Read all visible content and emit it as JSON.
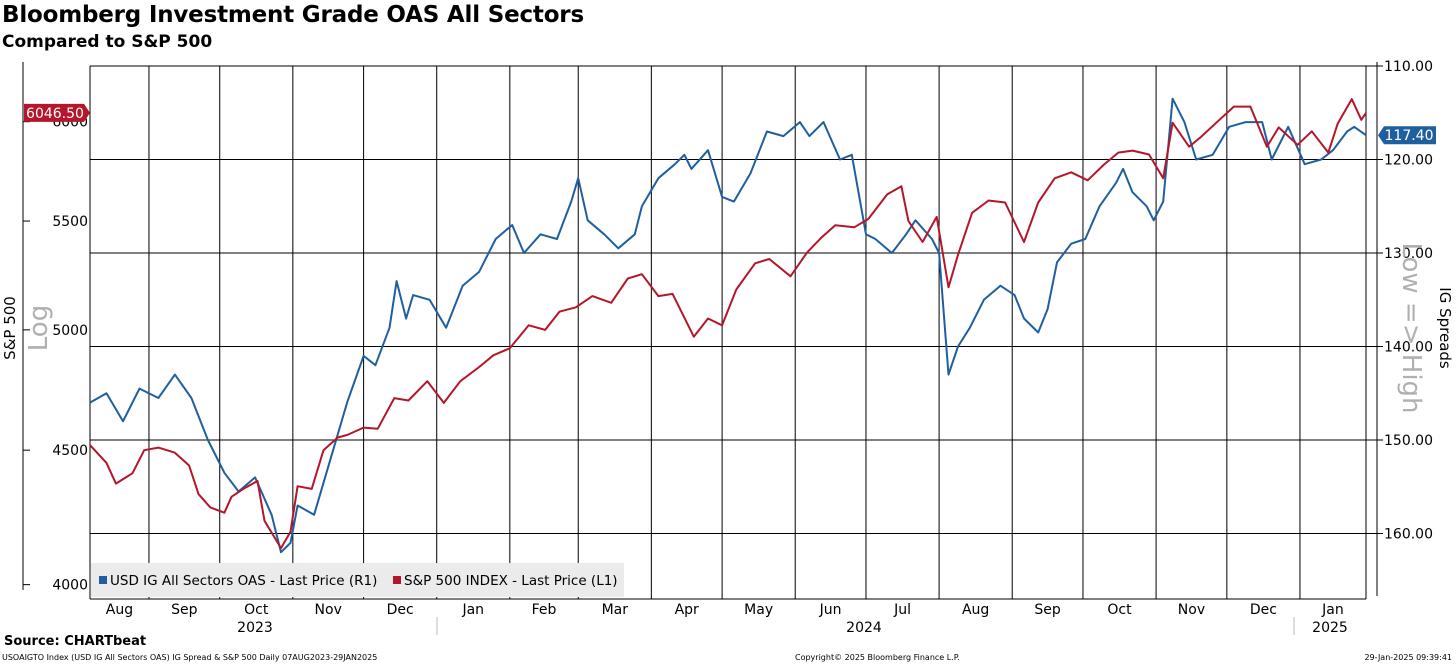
{
  "title": "Bloomberg Investment Grade OAS All Sectors",
  "subtitle": "Compared to S&P 500",
  "source": "Source: CHARTbeat",
  "footer": {
    "left": "USOAIGTO Index (USD IG All Sectors OAS) IG Spread & S&P 500  Daily 07AUG2023-29JAN2025",
    "center": "Copyright© 2025 Bloomberg Finance L.P.",
    "right": "29-Jan-2025 09:39:41"
  },
  "colors": {
    "spread": "#1f5fa0",
    "spx": "#b5162b",
    "grid": "#000000"
  },
  "chart_data": {
    "type": "line",
    "x_months": [
      "Aug",
      "Sep",
      "Oct",
      "Nov",
      "Dec",
      "Jan",
      "Feb",
      "Mar",
      "Apr",
      "May",
      "Jun",
      "Jul",
      "Aug",
      "Sep",
      "Oct",
      "Nov",
      "Dec",
      "Jan"
    ],
    "x_years": [
      "2023",
      "2024",
      "2025"
    ],
    "x_range": [
      "2023-08-07",
      "2025-01-29"
    ],
    "left_axis": {
      "label": "S&P 500",
      "note": "Log",
      "scale": "log",
      "ticks": [
        "4000",
        "4500",
        "5000",
        "5500",
        "6000"
      ],
      "range": [
        3950,
        6300
      ]
    },
    "right_axis": {
      "label": "IG Spreads",
      "note": "Low => High",
      "inverted": true,
      "ticks": [
        "110.00",
        "120.00",
        "130.00",
        "140.00",
        "150.00",
        "160.00"
      ],
      "range": [
        110,
        167
      ]
    },
    "last_values": {
      "spx": "6046.50",
      "spread": "117.40"
    },
    "legend": [
      "USD IG All Sectors OAS - Last Price (R1)",
      "S&P 500 INDEX - Last Price (L1)"
    ],
    "legend_position": "bottom-left",
    "grid": true,
    "series": [
      {
        "name": "USD IG All Sectors OAS - Last Price (R1)",
        "axis": "right",
        "points": [
          [
            "2023-08-07",
            146
          ],
          [
            "2023-08-14",
            145
          ],
          [
            "2023-08-21",
            148
          ],
          [
            "2023-08-28",
            144.5
          ],
          [
            "2023-09-05",
            145.5
          ],
          [
            "2023-09-12",
            143
          ],
          [
            "2023-09-19",
            145.5
          ],
          [
            "2023-09-26",
            150
          ],
          [
            "2023-10-03",
            153.5
          ],
          [
            "2023-10-09",
            155.5
          ],
          [
            "2023-10-16",
            154
          ],
          [
            "2023-10-23",
            158
          ],
          [
            "2023-10-27",
            162
          ],
          [
            "2023-10-31",
            161
          ],
          [
            "2023-11-03",
            157
          ],
          [
            "2023-11-10",
            158
          ],
          [
            "2023-11-17",
            152
          ],
          [
            "2023-11-24",
            146
          ],
          [
            "2023-12-01",
            141
          ],
          [
            "2023-12-06",
            142
          ],
          [
            "2023-12-12",
            138
          ],
          [
            "2023-12-15",
            133
          ],
          [
            "2023-12-19",
            137
          ],
          [
            "2023-12-22",
            134.5
          ],
          [
            "2023-12-29",
            135
          ],
          [
            "2024-01-05",
            138
          ],
          [
            "2024-01-12",
            133.5
          ],
          [
            "2024-01-19",
            132
          ],
          [
            "2024-01-26",
            128.5
          ],
          [
            "2024-02-02",
            127
          ],
          [
            "2024-02-07",
            130
          ],
          [
            "2024-02-14",
            128
          ],
          [
            "2024-02-21",
            128.5
          ],
          [
            "2024-02-27",
            124.5
          ],
          [
            "2024-03-01",
            122
          ],
          [
            "2024-03-05",
            126.5
          ],
          [
            "2024-03-12",
            128
          ],
          [
            "2024-03-18",
            129.5
          ],
          [
            "2024-03-25",
            128
          ],
          [
            "2024-03-28",
            125
          ],
          [
            "2024-04-04",
            122
          ],
          [
            "2024-04-11",
            120.5
          ],
          [
            "2024-04-15",
            119.5
          ],
          [
            "2024-04-18",
            121
          ],
          [
            "2024-04-25",
            119
          ],
          [
            "2024-05-01",
            124
          ],
          [
            "2024-05-06",
            124.5
          ],
          [
            "2024-05-13",
            121.5
          ],
          [
            "2024-05-20",
            117
          ],
          [
            "2024-05-27",
            117.5
          ],
          [
            "2024-06-03",
            116
          ],
          [
            "2024-06-07",
            117.5
          ],
          [
            "2024-06-13",
            116
          ],
          [
            "2024-06-20",
            120
          ],
          [
            "2024-06-25",
            119.5
          ],
          [
            "2024-07-01",
            128
          ],
          [
            "2024-07-05",
            128.5
          ],
          [
            "2024-07-12",
            130
          ],
          [
            "2024-07-18",
            128
          ],
          [
            "2024-07-22",
            126.5
          ],
          [
            "2024-07-29",
            128.5
          ],
          [
            "2024-08-01",
            130
          ],
          [
            "2024-08-05",
            143
          ],
          [
            "2024-08-09",
            140
          ],
          [
            "2024-08-14",
            138
          ],
          [
            "2024-08-20",
            135
          ],
          [
            "2024-08-27",
            133.5
          ],
          [
            "2024-09-02",
            134.5
          ],
          [
            "2024-09-06",
            137
          ],
          [
            "2024-09-12",
            138.5
          ],
          [
            "2024-09-16",
            136
          ],
          [
            "2024-09-20",
            131
          ],
          [
            "2024-09-26",
            129
          ],
          [
            "2024-10-02",
            128.5
          ],
          [
            "2024-10-08",
            125
          ],
          [
            "2024-10-15",
            122.5
          ],
          [
            "2024-10-18",
            121
          ],
          [
            "2024-10-22",
            123.5
          ],
          [
            "2024-10-28",
            125
          ],
          [
            "2024-10-31",
            126.5
          ],
          [
            "2024-11-04",
            124.5
          ],
          [
            "2024-11-08",
            113.5
          ],
          [
            "2024-11-13",
            116
          ],
          [
            "2024-11-18",
            120
          ],
          [
            "2024-11-25",
            119.5
          ],
          [
            "2024-12-02",
            116.5
          ],
          [
            "2024-12-09",
            116
          ],
          [
            "2024-12-16",
            116
          ],
          [
            "2024-12-20",
            120
          ],
          [
            "2024-12-27",
            116.5
          ],
          [
            "2025-01-03",
            120.5
          ],
          [
            "2025-01-10",
            120
          ],
          [
            "2025-01-15",
            119
          ],
          [
            "2025-01-21",
            117
          ],
          [
            "2025-01-24",
            116.5
          ],
          [
            "2025-01-29",
            117.4
          ]
        ]
      },
      {
        "name": "S&P 500 INDEX - Last Price (L1)",
        "axis": "left",
        "points": [
          [
            "2023-08-07",
            4520
          ],
          [
            "2023-08-14",
            4450
          ],
          [
            "2023-08-18",
            4370
          ],
          [
            "2023-08-25",
            4410
          ],
          [
            "2023-08-30",
            4500
          ],
          [
            "2023-09-05",
            4510
          ],
          [
            "2023-09-12",
            4490
          ],
          [
            "2023-09-18",
            4440
          ],
          [
            "2023-09-22",
            4330
          ],
          [
            "2023-09-27",
            4280
          ],
          [
            "2023-10-03",
            4260
          ],
          [
            "2023-10-06",
            4320
          ],
          [
            "2023-10-11",
            4350
          ],
          [
            "2023-10-17",
            4380
          ],
          [
            "2023-10-20",
            4230
          ],
          [
            "2023-10-27",
            4130
          ],
          [
            "2023-10-31",
            4190
          ],
          [
            "2023-11-03",
            4360
          ],
          [
            "2023-11-09",
            4350
          ],
          [
            "2023-11-14",
            4500
          ],
          [
            "2023-11-20",
            4550
          ],
          [
            "2023-11-24",
            4560
          ],
          [
            "2023-12-01",
            4590
          ],
          [
            "2023-12-07",
            4585
          ],
          [
            "2023-12-14",
            4710
          ],
          [
            "2023-12-20",
            4700
          ],
          [
            "2023-12-28",
            4780
          ],
          [
            "2024-01-04",
            4690
          ],
          [
            "2024-01-11",
            4780
          ],
          [
            "2024-01-19",
            4840
          ],
          [
            "2024-01-25",
            4890
          ],
          [
            "2024-02-01",
            4920
          ],
          [
            "2024-02-09",
            5020
          ],
          [
            "2024-02-16",
            5000
          ],
          [
            "2024-02-22",
            5080
          ],
          [
            "2024-02-29",
            5100
          ],
          [
            "2024-03-07",
            5150
          ],
          [
            "2024-03-15",
            5120
          ],
          [
            "2024-03-22",
            5230
          ],
          [
            "2024-03-28",
            5250
          ],
          [
            "2024-04-04",
            5150
          ],
          [
            "2024-04-10",
            5160
          ],
          [
            "2024-04-19",
            4970
          ],
          [
            "2024-04-25",
            5050
          ],
          [
            "2024-05-01",
            5020
          ],
          [
            "2024-05-07",
            5180
          ],
          [
            "2024-05-15",
            5300
          ],
          [
            "2024-05-21",
            5320
          ],
          [
            "2024-05-30",
            5240
          ],
          [
            "2024-06-06",
            5350
          ],
          [
            "2024-06-12",
            5420
          ],
          [
            "2024-06-18",
            5480
          ],
          [
            "2024-06-26",
            5470
          ],
          [
            "2024-07-02",
            5510
          ],
          [
            "2024-07-10",
            5630
          ],
          [
            "2024-07-16",
            5670
          ],
          [
            "2024-07-19",
            5500
          ],
          [
            "2024-07-25",
            5400
          ],
          [
            "2024-07-31",
            5520
          ],
          [
            "2024-08-05",
            5190
          ],
          [
            "2024-08-09",
            5340
          ],
          [
            "2024-08-15",
            5540
          ],
          [
            "2024-08-22",
            5600
          ],
          [
            "2024-08-29",
            5590
          ],
          [
            "2024-09-06",
            5400
          ],
          [
            "2024-09-12",
            5590
          ],
          [
            "2024-09-19",
            5710
          ],
          [
            "2024-09-26",
            5740
          ],
          [
            "2024-10-03",
            5700
          ],
          [
            "2024-10-10",
            5780
          ],
          [
            "2024-10-16",
            5840
          ],
          [
            "2024-10-22",
            5850
          ],
          [
            "2024-10-29",
            5830
          ],
          [
            "2024-11-04",
            5710
          ],
          [
            "2024-11-08",
            5995
          ],
          [
            "2024-11-15",
            5870
          ],
          [
            "2024-11-20",
            5920
          ],
          [
            "2024-11-27",
            6000
          ],
          [
            "2024-12-04",
            6080
          ],
          [
            "2024-12-11",
            6080
          ],
          [
            "2024-12-18",
            5870
          ],
          [
            "2024-12-23",
            5970
          ],
          [
            "2024-12-31",
            5880
          ],
          [
            "2025-01-06",
            5950
          ],
          [
            "2025-01-13",
            5840
          ],
          [
            "2025-01-17",
            5990
          ],
          [
            "2025-01-23",
            6120
          ],
          [
            "2025-01-27",
            6010
          ],
          [
            "2025-01-29",
            6046.5
          ]
        ]
      }
    ]
  }
}
